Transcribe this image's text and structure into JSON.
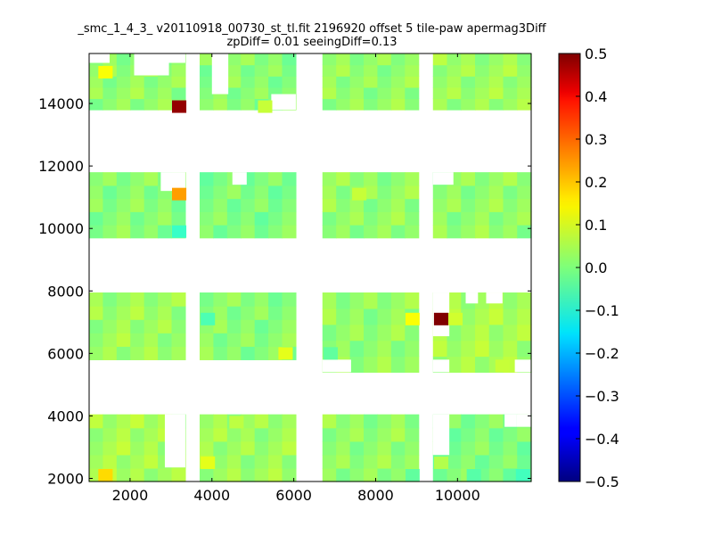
{
  "chart_data": {
    "type": "heatmap",
    "title": "_smc_1_4_3_ v20110918_00730_st_tl.fit 2196920 offset 5 tile-paw apermag3Diff",
    "subtitle": "zpDiff= 0.01 seeingDiff=0.13",
    "xlabel": "",
    "ylabel": "",
    "xlim": [
      1000,
      11800
    ],
    "ylim": [
      1900,
      15600
    ],
    "x_ticks": [
      "2000",
      "4000",
      "6000",
      "8000",
      "10000"
    ],
    "y_ticks": [
      "2000",
      "4000",
      "6000",
      "8000",
      "10000",
      "12000",
      "14000"
    ],
    "colorbar": {
      "range": [
        -0.5,
        0.5
      ],
      "ticks": [
        "0.5",
        "0.4",
        "0.3",
        "0.2",
        "0.1",
        "0.0",
        "−0.1",
        "−0.2",
        "−0.3",
        "−0.4",
        "−0.5"
      ],
      "colormap": "jet"
    },
    "blocks": [
      {
        "x0": 1000,
        "x1": 3350,
        "y0": 13800,
        "y1": 15600,
        "value": 0.02
      },
      {
        "x0": 3700,
        "x1": 6050,
        "y0": 13800,
        "y1": 15600,
        "value": 0.01
      },
      {
        "x0": 6700,
        "x1": 9050,
        "y0": 13800,
        "y1": 15600,
        "value": 0.02
      },
      {
        "x0": 9400,
        "x1": 11800,
        "y0": 13800,
        "y1": 15600,
        "value": 0.03
      },
      {
        "x0": 1000,
        "x1": 3350,
        "y0": 9700,
        "y1": 11800,
        "value": 0.01
      },
      {
        "x0": 3700,
        "x1": 6050,
        "y0": 9700,
        "y1": 11800,
        "value": 0.0
      },
      {
        "x0": 6700,
        "x1": 9050,
        "y0": 9700,
        "y1": 11800,
        "value": 0.02
      },
      {
        "x0": 9400,
        "x1": 11800,
        "y0": 9700,
        "y1": 11800,
        "value": 0.02
      },
      {
        "x0": 1000,
        "x1": 3350,
        "y0": 5800,
        "y1": 7950,
        "value": 0.03
      },
      {
        "x0": 3700,
        "x1": 6050,
        "y0": 5800,
        "y1": 7950,
        "value": 0.01
      },
      {
        "x0": 6700,
        "x1": 9050,
        "y0": 5400,
        "y1": 7950,
        "value": 0.02
      },
      {
        "x0": 9400,
        "x1": 11800,
        "y0": 5400,
        "y1": 7950,
        "value": 0.04
      },
      {
        "x0": 1000,
        "x1": 3350,
        "y0": 1900,
        "y1": 4050,
        "value": 0.04
      },
      {
        "x0": 3700,
        "x1": 6050,
        "y0": 1900,
        "y1": 4050,
        "value": 0.03
      },
      {
        "x0": 6700,
        "x1": 9050,
        "y0": 1900,
        "y1": 4050,
        "value": 0.02
      },
      {
        "x0": 9400,
        "x1": 11800,
        "y0": 1900,
        "y1": 4050,
        "value": 0.0
      }
    ],
    "blanks": [
      {
        "x0": 2900,
        "x1": 3350,
        "y0": 15300,
        "y1": 15600
      },
      {
        "x0": 2100,
        "x1": 2950,
        "y0": 14900,
        "y1": 15600
      },
      {
        "x0": 1000,
        "x1": 1500,
        "y0": 15300,
        "y1": 15600
      },
      {
        "x0": 4000,
        "x1": 4400,
        "y0": 14300,
        "y1": 15600
      },
      {
        "x0": 3700,
        "x1": 4000,
        "y0": 15600,
        "y1": 15600
      },
      {
        "x0": 5450,
        "x1": 6050,
        "y0": 13800,
        "y1": 14300
      },
      {
        "x0": 2750,
        "x1": 3350,
        "y0": 11200,
        "y1": 11800
      },
      {
        "x0": 4500,
        "x1": 4850,
        "y0": 11400,
        "y1": 11800
      },
      {
        "x0": 9400,
        "x1": 9900,
        "y0": 11400,
        "y1": 11800
      },
      {
        "x0": 10200,
        "x1": 10500,
        "y0": 7600,
        "y1": 7950
      },
      {
        "x0": 10700,
        "x1": 11100,
        "y0": 7600,
        "y1": 7950
      },
      {
        "x0": 9400,
        "x1": 9800,
        "y0": 6550,
        "y1": 7950
      },
      {
        "x0": 6700,
        "x1": 7400,
        "y0": 5400,
        "y1": 5800
      },
      {
        "x0": 9400,
        "x1": 9800,
        "y0": 5400,
        "y1": 5800
      },
      {
        "x0": 11400,
        "x1": 11800,
        "y0": 5400,
        "y1": 5800
      },
      {
        "x0": 2850,
        "x1": 3350,
        "y0": 2350,
        "y1": 4050
      },
      {
        "x0": 9400,
        "x1": 9800,
        "y0": 2750,
        "y1": 4050
      },
      {
        "x0": 11150,
        "x1": 11450,
        "y0": 3650,
        "y1": 4050
      },
      {
        "x0": 11450,
        "x1": 11800,
        "y0": 3650,
        "y1": 4050
      }
    ],
    "cells": [
      {
        "x": 1400,
        "y": 15000,
        "w": 350,
        "h": 400,
        "value": 0.12
      },
      {
        "x": 3200,
        "y": 13900,
        "w": 350,
        "h": 400,
        "value": 0.48
      },
      {
        "x": 5300,
        "y": 13900,
        "w": 350,
        "h": 400,
        "value": 0.07
      },
      {
        "x": 3200,
        "y": 11100,
        "w": 350,
        "h": 400,
        "value": 0.22
      },
      {
        "x": 3200,
        "y": 9900,
        "w": 350,
        "h": 400,
        "value": -0.07
      },
      {
        "x": 7600,
        "y": 11100,
        "w": 350,
        "h": 400,
        "value": 0.07
      },
      {
        "x": 8900,
        "y": 7100,
        "w": 350,
        "h": 400,
        "value": 0.12
      },
      {
        "x": 9600,
        "y": 7100,
        "w": 350,
        "h": 400,
        "value": 0.5
      },
      {
        "x": 9950,
        "y": 7100,
        "w": 350,
        "h": 400,
        "value": 0.08
      },
      {
        "x": 3900,
        "y": 7100,
        "w": 350,
        "h": 400,
        "value": -0.05
      },
      {
        "x": 5800,
        "y": 6000,
        "w": 350,
        "h": 400,
        "value": 0.1
      },
      {
        "x": 6900,
        "y": 6000,
        "w": 350,
        "h": 400,
        "value": -0.03
      },
      {
        "x": 11100,
        "y": 5600,
        "w": 350,
        "h": 400,
        "value": 0.07
      },
      {
        "x": 4600,
        "y": 3800,
        "w": 350,
        "h": 400,
        "value": 0.06
      },
      {
        "x": 3900,
        "y": 2500,
        "w": 350,
        "h": 400,
        "value": 0.1
      },
      {
        "x": 1400,
        "y": 2100,
        "w": 350,
        "h": 400,
        "value": 0.16
      },
      {
        "x": 9600,
        "y": 2500,
        "w": 350,
        "h": 400,
        "value": 0.05
      },
      {
        "x": 11600,
        "y": 2100,
        "w": 350,
        "h": 400,
        "value": -0.06
      },
      {
        "x": 10400,
        "y": 2100,
        "w": 350,
        "h": 400,
        "value": -0.04
      },
      {
        "x": 8900,
        "y": 2100,
        "w": 350,
        "h": 400,
        "value": -0.03
      }
    ]
  }
}
